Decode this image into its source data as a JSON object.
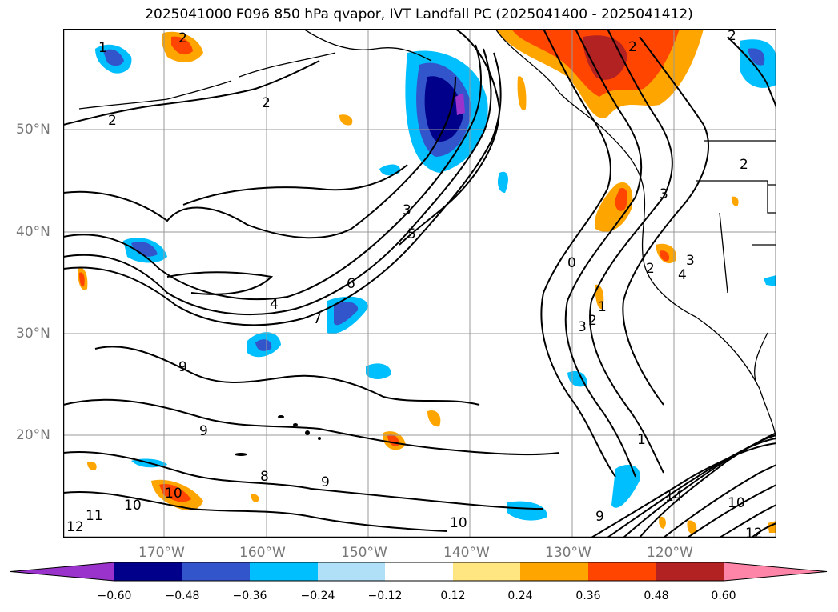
{
  "title": "2025041000 F096 850 hPa qvapor, IVT Landfall PC (2025041400 - 2025041412)",
  "lat_ticks": [
    "50°N",
    "40°N",
    "30°N",
    "20°N"
  ],
  "lon_ticks": [
    "170°W",
    "160°W",
    "150°W",
    "140°W",
    "130°W",
    "120°W"
  ],
  "colorbar": {
    "labels": [
      "−0.60",
      "−0.48",
      "−0.36",
      "−0.24",
      "−0.12",
      "0.12",
      "0.24",
      "0.36",
      "0.48",
      "0.60"
    ],
    "colors": [
      "#9933cc",
      "#00008b",
      "#3355cc",
      "#00bfff",
      "#b0e0f8",
      "#ffffff",
      "#ffe680",
      "#ffa500",
      "#ff4500",
      "#b22222",
      "#ff85a8"
    ]
  },
  "contour_labels": [
    "1",
    "2",
    "2",
    "2",
    "2",
    "2",
    "2",
    "3",
    "5",
    "6",
    "4",
    "7",
    "9",
    "9",
    "9",
    "8",
    "10",
    "10",
    "10",
    "11",
    "12",
    "0",
    "2",
    "3",
    "1",
    "1",
    "3",
    "4",
    "14",
    "10",
    "12",
    "9",
    "2",
    "3"
  ]
}
